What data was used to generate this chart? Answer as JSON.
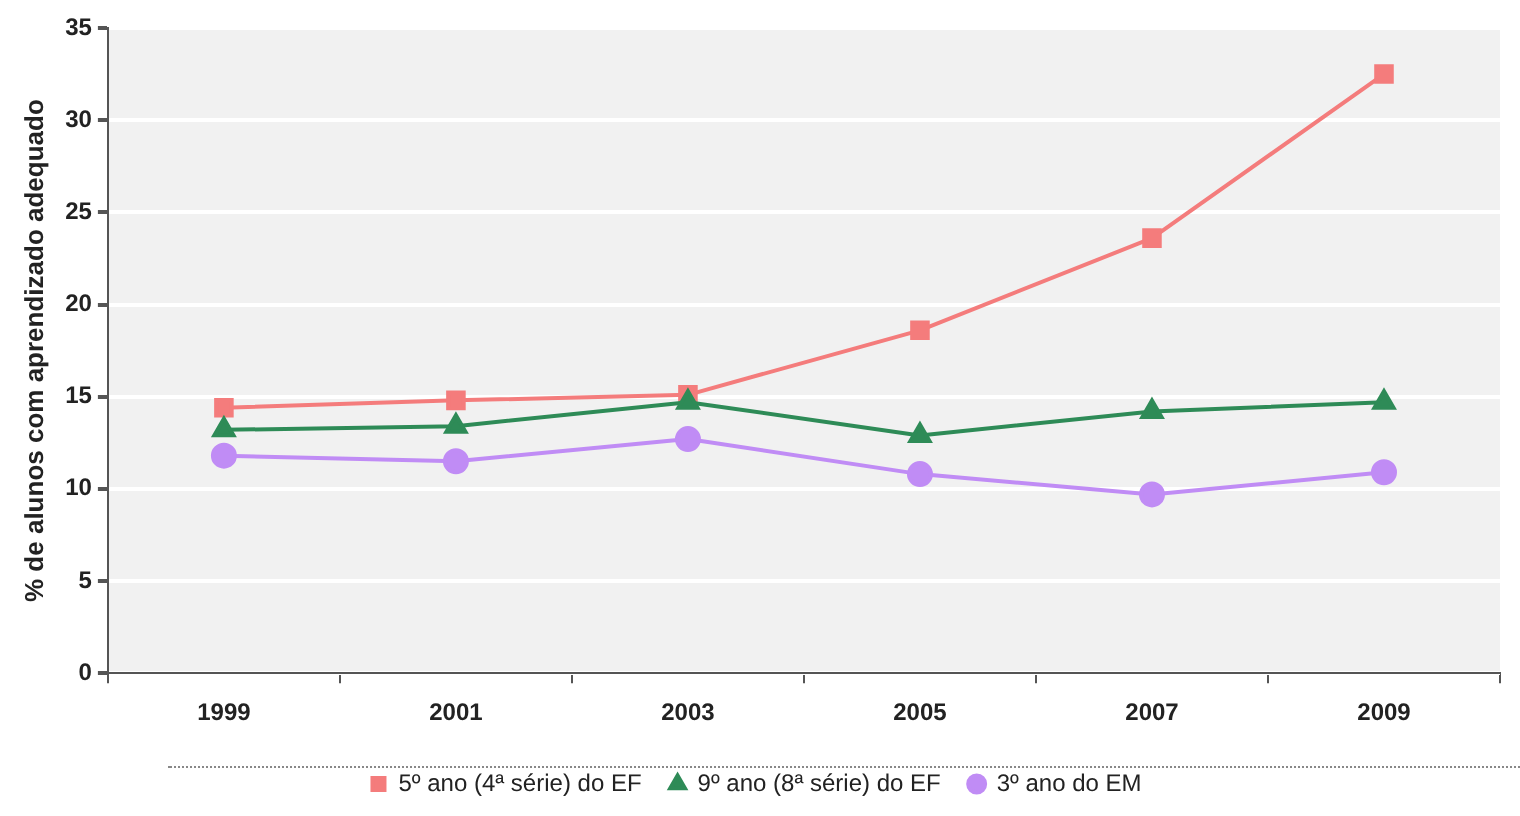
{
  "chart_data": {
    "type": "line",
    "ylabel": "% de alunos com aprendizado adequado",
    "categories": [
      "1999",
      "2001",
      "2003",
      "2005",
      "2007",
      "2009"
    ],
    "series": [
      {
        "name": "5º ano (4ª série) do EF",
        "color": "#f47c7c",
        "marker": "square",
        "values": [
          14.4,
          14.8,
          15.1,
          18.6,
          23.6,
          32.5
        ]
      },
      {
        "name": "9º ano (8ª série) do EF",
        "color": "#2e8b57",
        "marker": "triangle",
        "values": [
          13.2,
          13.4,
          14.7,
          12.9,
          14.2,
          14.7
        ]
      },
      {
        "name": "3º ano do EM",
        "color": "#c08cf5",
        "marker": "circle",
        "values": [
          11.8,
          11.5,
          12.7,
          10.8,
          9.7,
          10.9
        ]
      }
    ],
    "ylim": [
      0,
      35
    ],
    "yticks": [
      0,
      5,
      10,
      15,
      20,
      25,
      30,
      35
    ],
    "grid": "y",
    "legend": "bottom"
  }
}
